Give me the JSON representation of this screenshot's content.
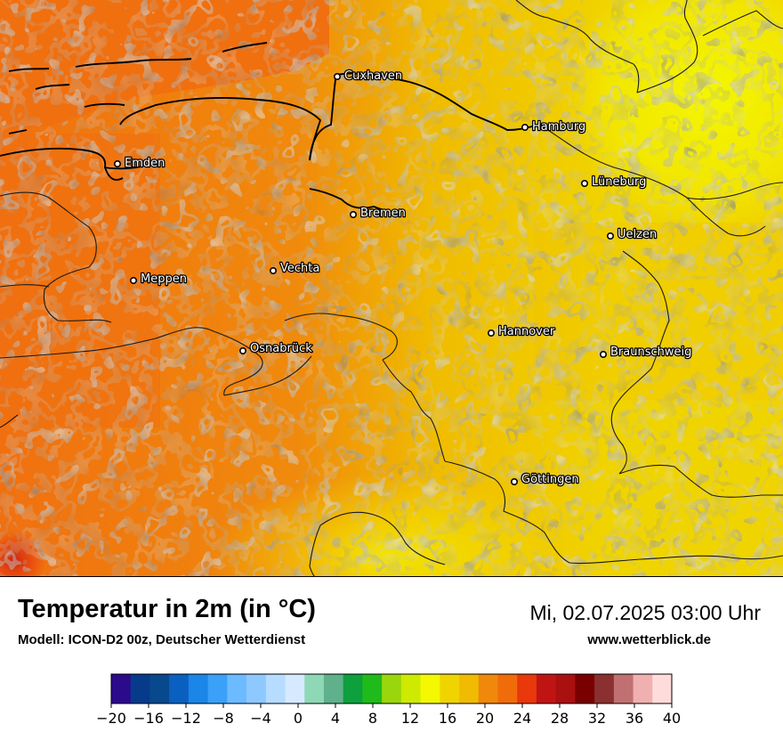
{
  "header": {
    "title": "Temperatur in 2m (in °C)",
    "model": "Modell: ICON-D2 00z, Deutscher Wetterdienst",
    "datetime": "Mi, 02.07.2025 03:00 Uhr",
    "website": "www.wetterblick.de"
  },
  "cities": [
    {
      "name": "Cuxhaven"
    },
    {
      "name": "Hamburg"
    },
    {
      "name": "Emden"
    },
    {
      "name": "Lüneburg"
    },
    {
      "name": "Bremen"
    },
    {
      "name": "Uelzen"
    },
    {
      "name": "Vechta"
    },
    {
      "name": "Meppen"
    },
    {
      "name": "Hannover"
    },
    {
      "name": "Osnabrück"
    },
    {
      "name": "Braunschweig"
    },
    {
      "name": "Göttingen"
    }
  ],
  "legend": {
    "min": -20,
    "max": 40,
    "step": 2,
    "tick_labels": [
      "−20",
      "−16",
      "−12",
      "−8",
      "−4",
      "0",
      "4",
      "8",
      "12",
      "16",
      "20",
      "24",
      "28",
      "32",
      "36",
      "40"
    ],
    "colors": [
      "#2c0a8c",
      "#063a8a",
      "#08488c",
      "#0a60c0",
      "#1a86e8",
      "#3aa0f8",
      "#6cbaff",
      "#8ec8ff",
      "#b6dcff",
      "#d6eaff",
      "#8ed8b6",
      "#60b08c",
      "#0ea03c",
      "#1fbb1a",
      "#9ad60c",
      "#cdea00",
      "#f4f800",
      "#f0d400",
      "#f0bb00",
      "#f0880c",
      "#f06c0a",
      "#e8380c",
      "#c01414",
      "#aa1010",
      "#7a0000",
      "#8a3030",
      "#c07070",
      "#f0b0b0",
      "#ffdcdc"
    ]
  },
  "map_colors": {
    "sea": "#f07010",
    "warm_orange": "#f08a0c",
    "amber": "#f0bb00",
    "gold": "#f0d400",
    "yellow": "#f4f800",
    "lime": "#cdea00",
    "red_orange": "#e8380c",
    "dark_red": "#c01414"
  }
}
